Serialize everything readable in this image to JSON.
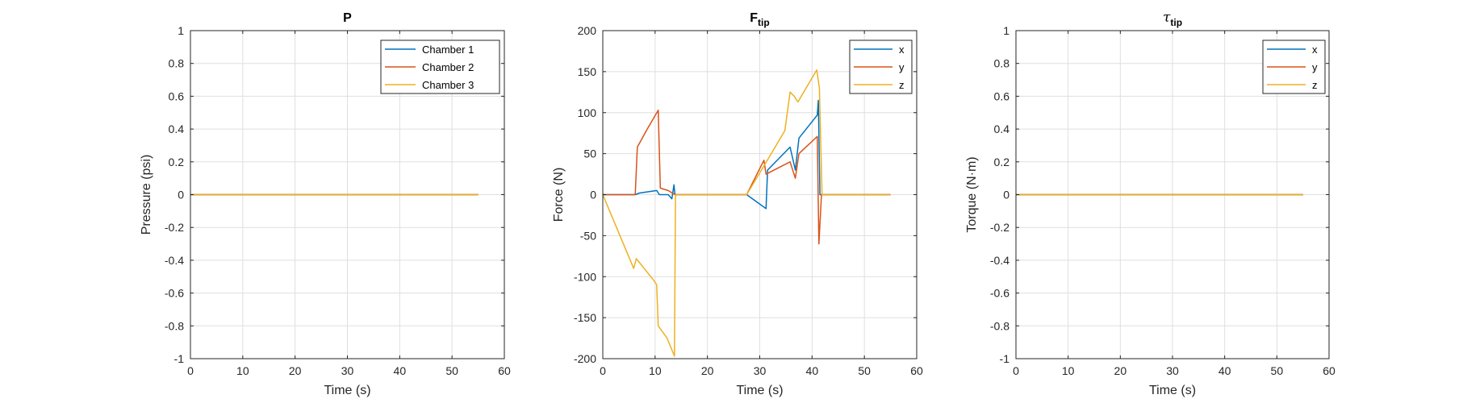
{
  "figure": {
    "background": "#ffffff",
    "axes_color": "#262626",
    "grid_color": "#dfdfdf"
  },
  "chart_data": [
    {
      "type": "line",
      "title": "P",
      "xlabel": "Time (s)",
      "ylabel": "Pressure (psi)",
      "xlim": [
        0,
        60
      ],
      "ylim": [
        -1,
        1
      ],
      "xticks": [
        0,
        10,
        20,
        30,
        40,
        50,
        60
      ],
      "yticks": [
        -1,
        -0.8,
        -0.6,
        -0.4,
        -0.2,
        0,
        0.2,
        0.4,
        0.6,
        0.8,
        1
      ],
      "grid": true,
      "legend_position": "top-right",
      "series": [
        {
          "name": "Chamber 1",
          "color": "#0072BD",
          "x": [
            0,
            55
          ],
          "y": [
            0,
            0
          ]
        },
        {
          "name": "Chamber 2",
          "color": "#D95319",
          "x": [
            0,
            55
          ],
          "y": [
            0,
            0
          ]
        },
        {
          "name": "Chamber 3",
          "color": "#EDB120",
          "x": [
            0,
            55
          ],
          "y": [
            0,
            0
          ]
        }
      ]
    },
    {
      "type": "line",
      "title": "F",
      "title_subscript": "tip",
      "xlabel": "Time (s)",
      "ylabel": "Force (N)",
      "xlim": [
        0,
        60
      ],
      "ylim": [
        -200,
        200
      ],
      "xticks": [
        0,
        10,
        20,
        30,
        40,
        50,
        60
      ],
      "yticks": [
        -200,
        -150,
        -100,
        -50,
        0,
        50,
        100,
        150,
        200
      ],
      "grid": true,
      "legend_position": "top-right",
      "series": [
        {
          "name": "x",
          "color": "#0072BD",
          "x": [
            0,
            6.2,
            7,
            10.3,
            10.8,
            12.5,
            13.2,
            13.6,
            13.8,
            14,
            27.5,
            31.2,
            31.5,
            35.8,
            36.8,
            37.5,
            41,
            41.2,
            41.5,
            55
          ],
          "y": [
            0,
            0,
            2,
            5,
            0,
            0,
            -5,
            12,
            0,
            0,
            0,
            -17,
            30,
            58,
            30,
            69,
            97,
            115,
            0,
            0
          ]
        },
        {
          "name": "y",
          "color": "#D95319",
          "x": [
            0,
            6.2,
            6.6,
            8.5,
            10.6,
            11,
            12.5,
            13.8,
            14,
            27.5,
            30.8,
            31.2,
            35.8,
            36.8,
            37.5,
            41,
            41.3,
            41.8,
            55
          ],
          "y": [
            0,
            0,
            58,
            80,
            103,
            8,
            5,
            0,
            0,
            0,
            42,
            25,
            40,
            20,
            50,
            71,
            -60,
            0,
            0
          ]
        },
        {
          "name": "z",
          "color": "#EDB120",
          "x": [
            0,
            5.9,
            6.4,
            9.8,
            10.3,
            10.6,
            12.3,
            13.7,
            13.9,
            14,
            27.5,
            30.8,
            34.8,
            35.8,
            36.6,
            37.3,
            40.9,
            41.4,
            41.9,
            55
          ],
          "y": [
            0,
            -90,
            -78,
            -105,
            -110,
            -160,
            -175,
            -197,
            0,
            0,
            0,
            35,
            78,
            125,
            120,
            113,
            152,
            130,
            0,
            0
          ]
        }
      ]
    },
    {
      "type": "line",
      "title": "τ",
      "title_subscript": "tip",
      "xlabel": "Time (s)",
      "ylabel": "Torque (N·m)",
      "xlim": [
        0,
        60
      ],
      "ylim": [
        -1,
        1
      ],
      "xticks": [
        0,
        10,
        20,
        30,
        40,
        50,
        60
      ],
      "yticks": [
        -1,
        -0.8,
        -0.6,
        -0.4,
        -0.2,
        0,
        0.2,
        0.4,
        0.6,
        0.8,
        1
      ],
      "grid": true,
      "legend_position": "top-right",
      "series": [
        {
          "name": "x",
          "color": "#0072BD",
          "x": [
            0,
            55
          ],
          "y": [
            0,
            0
          ]
        },
        {
          "name": "y",
          "color": "#D95319",
          "x": [
            0,
            55
          ],
          "y": [
            0,
            0
          ]
        },
        {
          "name": "z",
          "color": "#EDB120",
          "x": [
            0,
            55
          ],
          "y": [
            0,
            0
          ]
        }
      ]
    }
  ]
}
